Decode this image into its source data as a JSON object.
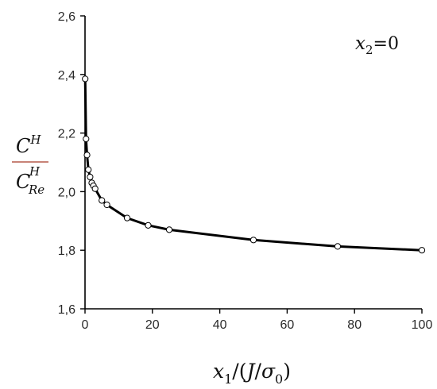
{
  "chart_data": {
    "type": "line",
    "title": "",
    "annotation": {
      "var": "x",
      "sub": "2",
      "rest": "=0"
    },
    "xaxis": {
      "min": 0,
      "max": 100,
      "ticks": [
        0,
        20,
        40,
        60,
        80,
        100
      ],
      "tick_labels": [
        "0",
        "20",
        "40",
        "60",
        "80",
        "100"
      ],
      "label": {
        "var": "x",
        "sub": "1",
        "open": "/(",
        "J": "J",
        "slash": "/",
        "sigma": "σ",
        "sigma_sub": "0",
        "close": ")"
      }
    },
    "yaxis": {
      "min": 1.6,
      "max": 2.6,
      "ticks": [
        1.6,
        1.8,
        2.0,
        2.2,
        2.4,
        2.6
      ],
      "tick_labels": [
        "1,6",
        "1,8",
        "2,0",
        "2,2",
        "2,4",
        "2,6"
      ],
      "label": {
        "num_var": "C",
        "num_sup": "H",
        "den_var": "C",
        "den_sup": "H",
        "den_sub": "Re"
      }
    },
    "grid": false,
    "series": [
      {
        "x": [
          0.05,
          0.3,
          0.6,
          1.0,
          1.5,
          2.0,
          2.5,
          3.0,
          5.0,
          6.5,
          12.5,
          18.75,
          25.0,
          50.0,
          75.0,
          100.0
        ],
        "y": [
          2.385,
          2.18,
          2.125,
          2.075,
          2.05,
          2.03,
          2.02,
          2.01,
          1.97,
          1.955,
          1.91,
          1.885,
          1.87,
          1.835,
          1.813,
          1.8
        ],
        "marker": "open-circle",
        "line_color": "#000000",
        "marker_fill": "#ffffff"
      }
    ],
    "colors": {
      "fraction_bar": "#b55a4a",
      "axis": "#000000"
    }
  }
}
